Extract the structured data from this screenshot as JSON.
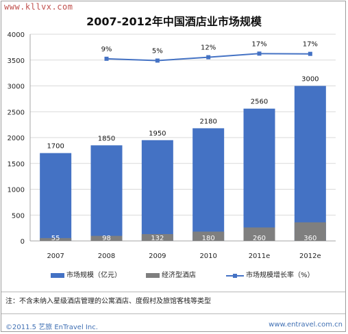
{
  "watermark": "www.kllvx.com",
  "title": "2007-2012年中国酒店业市场规模",
  "chart_data": {
    "type": "bar",
    "categories": [
      "2007",
      "2008",
      "2009",
      "2010",
      "2011e",
      "2012e"
    ],
    "series": [
      {
        "name": "市场规模（亿元）",
        "values": [
          1700,
          1850,
          1950,
          2180,
          2560,
          3000
        ],
        "labels": [
          "1700",
          "1850",
          "1950",
          "2180",
          "2560",
          "3000"
        ],
        "color": "#4472c4"
      },
      {
        "name": "经济型酒店",
        "values": [
          55,
          98,
          132,
          180,
          260,
          360
        ],
        "labels": [
          "55",
          "98",
          "132",
          "180",
          "260",
          "360"
        ],
        "color": "#7f7f7f"
      },
      {
        "name": "市场规模增长率（%）",
        "type": "line",
        "values": [
          null,
          9,
          5,
          12,
          17,
          17
        ],
        "labels": [
          "",
          "9%",
          "5%",
          "12%",
          "17%",
          "17%"
        ],
        "plot_y": [
          null,
          3525,
          3490,
          3555,
          3625,
          3620
        ],
        "color": "#4472c4"
      }
    ],
    "ylim": [
      0,
      4000
    ],
    "yticks": [
      "0",
      "500",
      "1000",
      "1500",
      "2000",
      "2500",
      "3000",
      "3500",
      "4000"
    ],
    "grid": true,
    "legend_position": "bottom"
  },
  "legend": {
    "item1": "市场规模（亿元）",
    "item2": "经济型酒店",
    "item3": "市场规模增长率（%）"
  },
  "note": "注：不含未纳入星级酒店管理的公寓酒店、度假村及旅馆客栈等类型",
  "footer": {
    "left": "©2011.5 艺旅 EnTravel Inc.",
    "right": "www.entravel.com.cn"
  }
}
